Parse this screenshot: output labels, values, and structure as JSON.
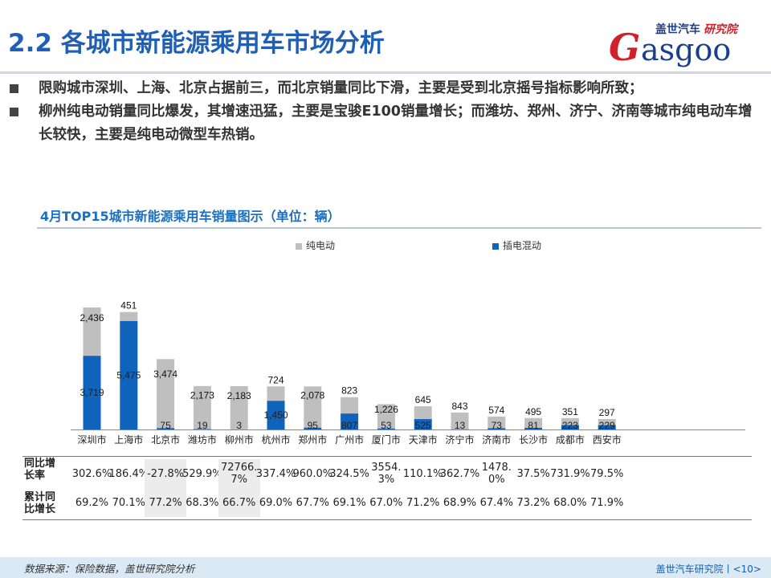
{
  "header": {
    "title": "2.2 各城市新能源乘用车市场分析",
    "logo_top": "盖世汽车",
    "logo_top_red": "研究院",
    "logo_g": "G",
    "logo_rest": "asgoo"
  },
  "bullets": [
    "限购城市深圳、上海、北京占据前三，而北京销量同比下滑，主要是受到北京摇号指标影响所致；",
    "柳州纯电动销量同比爆发，其增速迅猛，主要是宝骏E100销量增长；而潍坊、郑州、济宁、济南等城市纯电动车增长较快，主要是纯电动微型车热销。"
  ],
  "chart_title": "4月TOP15城市新能源乘用车销量图示（单位：辆）",
  "chart_data": {
    "type": "bar",
    "stacked": true,
    "categories": [
      "深圳市",
      "上海市",
      "北京市",
      "潍坊市",
      "柳州市",
      "杭州市",
      "郑州市",
      "广州市",
      "厦门市",
      "天津市",
      "济宁市",
      "济南市",
      "长沙市",
      "成都市",
      "西安市"
    ],
    "series": [
      {
        "name": "插电混动",
        "color": "#0f63bb",
        "values": [
          3719,
          5475,
          75,
          19,
          3,
          1450,
          95,
          807,
          53,
          525,
          13,
          73,
          81,
          223,
          229
        ],
        "labels": [
          "3,719",
          "5,475",
          "75",
          "19",
          "3",
          "1,450",
          "95",
          "807",
          "53",
          "525",
          "13",
          "73",
          "81",
          "223",
          "229"
        ]
      },
      {
        "name": "纯电动",
        "color": "#bfbfbf",
        "values": [
          2436,
          451,
          3474,
          2173,
          2183,
          724,
          2078,
          823,
          1226,
          645,
          843,
          574,
          495,
          351,
          297
        ],
        "labels": [
          "2,436",
          "451",
          "3,474",
          "2,173",
          "2,183",
          "724",
          "2,078",
          "823",
          "1,226",
          "645",
          "843",
          "574",
          "495",
          "351",
          "297"
        ]
      }
    ],
    "legend_order": [
      "纯电动",
      "插电混动"
    ],
    "legend_position": "top",
    "ylim": [
      0,
      6000
    ],
    "grid": false
  },
  "table": {
    "rows": [
      {
        "label": "同比增长率",
        "values": [
          "302.6%",
          "186.4%",
          "-27.8%",
          "529.9%",
          "72766.7%",
          "337.4%",
          "960.0%",
          "324.5%",
          "3554.3%",
          "110.1%",
          "362.7%",
          "1478.0%",
          "37.5%",
          "731.9%",
          "79.5%"
        ]
      },
      {
        "label": "累计同比增长",
        "values": [
          "69.2%",
          "70.1%",
          "77.2%",
          "68.3%",
          "66.7%",
          "69.0%",
          "67.7%",
          "69.1%",
          "67.0%",
          "71.2%",
          "68.9%",
          "67.4%",
          "73.2%",
          "68.0%",
          "71.9%"
        ]
      }
    ],
    "shaded_columns": [
      2,
      4
    ]
  },
  "footer": {
    "source": "数据来源：保险数据，盖世研究院分析",
    "page": "盖世汽车研究院丨<10>"
  }
}
